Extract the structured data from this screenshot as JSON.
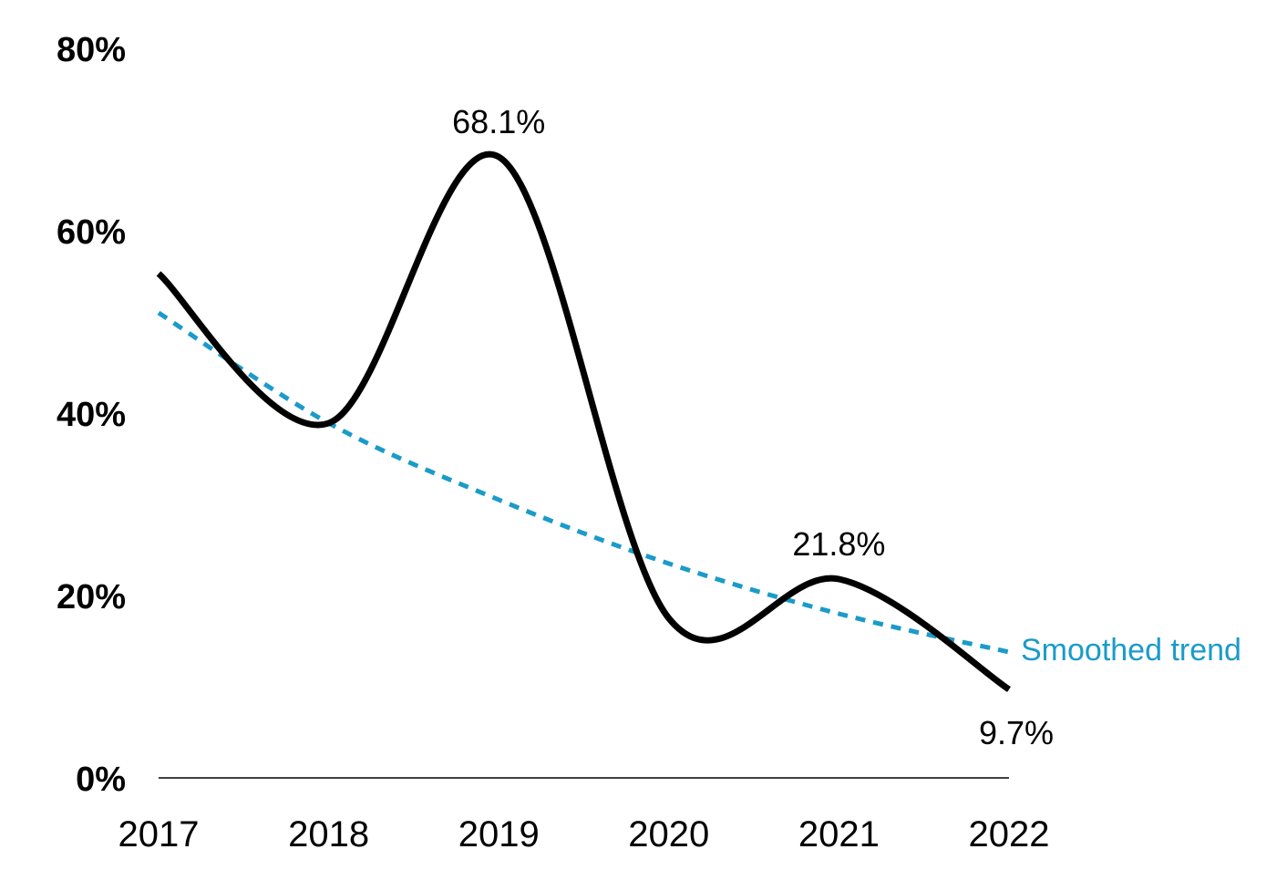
{
  "chart_data": {
    "type": "line",
    "x": [
      "2017",
      "2018",
      "2019",
      "2020",
      "2021",
      "2022"
    ],
    "y_ticks": [
      "0%",
      "20%",
      "40%",
      "60%",
      "80%"
    ],
    "ylim": [
      0,
      80
    ],
    "grid": false,
    "series": [
      {
        "values": [
          55.3,
          38.9,
          68.1,
          17.5,
          21.8,
          9.7
        ],
        "color": "#000000",
        "style": "solid"
      },
      {
        "name": "Smoothed trend",
        "values": [
          51,
          38.9,
          30.5,
          23.5,
          18,
          13.8
        ],
        "color": "#1a9bc9",
        "style": "dotted"
      }
    ],
    "data_labels": [
      {
        "index": 2,
        "text": "68.1%"
      },
      {
        "index": 4,
        "text": "21.8%"
      },
      {
        "index": 5,
        "text": "9.7%"
      }
    ]
  }
}
